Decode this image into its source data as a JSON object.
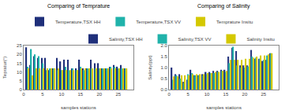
{
  "chart_data": [
    {
      "type": "bar",
      "title": "Comparing of Temprature",
      "xlabel": "samples stations",
      "ylabel": "Tepratur(°)",
      "x": [
        1,
        2,
        3,
        4,
        5,
        6,
        7,
        8,
        9,
        10,
        11,
        12,
        13,
        14,
        15,
        16,
        17,
        18,
        19,
        20,
        21,
        22,
        23,
        24,
        25,
        26,
        27
      ],
      "series": [
        {
          "name": "Temperature,TSX HH",
          "color": "#1f2f7a",
          "values": [
            24,
            14,
            19,
            18,
            18,
            18,
            11,
            12,
            18,
            16,
            17,
            17,
            12,
            12,
            17,
            12,
            12,
            17,
            15,
            15,
            12,
            12,
            13,
            14,
            13,
            14,
            12
          ]
        },
        {
          "name": "Temperature,TSX VV",
          "color": "#20b2aa",
          "values": [
            13,
            23,
            20,
            19,
            15,
            11,
            12,
            12,
            11,
            11,
            13,
            11,
            12,
            11,
            13,
            11,
            12,
            12,
            12,
            12,
            12,
            12,
            13,
            13,
            12,
            12,
            12
          ]
        },
        {
          "name": "Temprature Insitu",
          "color": "#d4c800",
          "values": [
            12,
            8,
            12,
            12,
            12,
            12,
            12,
            12,
            12,
            11,
            11,
            11,
            11,
            11,
            12,
            12,
            12,
            12,
            12,
            12,
            12,
            12,
            12,
            12,
            12,
            12,
            12
          ]
        }
      ],
      "xlim": [
        0,
        29
      ],
      "xticks": [
        0,
        5,
        10,
        15,
        20,
        25
      ],
      "ylim": [
        0,
        25
      ],
      "yticks": [
        0,
        5,
        10,
        15,
        20,
        25
      ],
      "grid": false,
      "legend": "top"
    },
    {
      "type": "bar",
      "title": "Comparing of Salinity",
      "xlabel": "samples stations",
      "ylabel": "Salinity(ppt)",
      "x": [
        1,
        2,
        3,
        4,
        5,
        6,
        7,
        8,
        9,
        10,
        11,
        12,
        13,
        14,
        15,
        16,
        17,
        18,
        19,
        20,
        21,
        22,
        23,
        24,
        25,
        26,
        27
      ],
      "series": [
        {
          "name": "Salinity,TSX HH",
          "color": "#1f2f7a",
          "values": [
            1.0,
            0.7,
            0.7,
            0.35,
            0.45,
            0.9,
            0.65,
            0.65,
            0.7,
            0.8,
            0.8,
            0.85,
            0.85,
            0.9,
            0.9,
            1.5,
            1.9,
            1.75,
            1.1,
            1.1,
            1.1,
            1.8,
            1.4,
            1.4,
            1.3,
            1.35,
            1.65
          ]
        },
        {
          "name": "Salinity,TSX VV",
          "color": "#20b2aa",
          "values": [
            0.45,
            0.65,
            0.5,
            0.3,
            0.7,
            0.75,
            0.65,
            0.65,
            0.65,
            0.7,
            0.75,
            0.75,
            0.8,
            0.85,
            0.8,
            1.2,
            1.95,
            1.1,
            1.0,
            1.0,
            1.05,
            1.5,
            1.45,
            1.4,
            1.35,
            1.55,
            1.65
          ]
        },
        {
          "name": "Salinity Insitu",
          "color": "#d4c800",
          "values": [
            0.6,
            0.6,
            0.65,
            0.65,
            0.65,
            0.7,
            0.7,
            0.7,
            0.7,
            0.75,
            0.75,
            0.8,
            0.8,
            0.85,
            0.85,
            1.35,
            1.35,
            1.35,
            1.35,
            1.4,
            1.4,
            1.45,
            1.5,
            1.55,
            1.55,
            1.6,
            1.65
          ]
        }
      ],
      "xlim": [
        0,
        29
      ],
      "xticks": [
        0,
        5,
        10,
        15,
        20,
        25
      ],
      "ylim": [
        0,
        2
      ],
      "yticks": [
        {
          "value": 0,
          "label": "0.0"
        },
        0.5,
        {
          "value": 1,
          "label": "1.0"
        },
        1.5,
        {
          "value": 2,
          "label": "2.0"
        }
      ],
      "grid": false,
      "legend": "top"
    }
  ]
}
